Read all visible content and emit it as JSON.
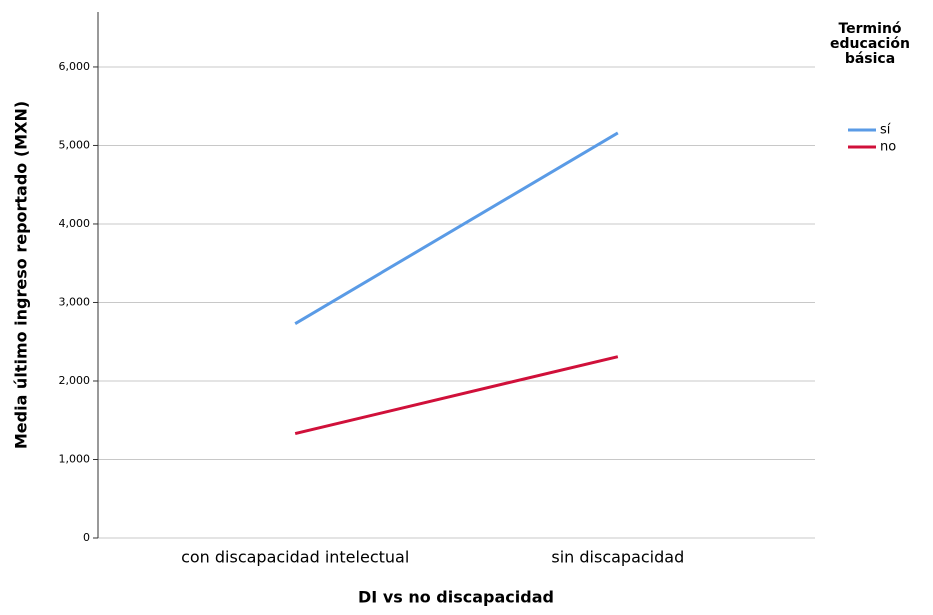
{
  "chart_data": {
    "type": "line",
    "x_label": "DI vs no discapacidad",
    "y_label": "Media último ingreso reportado (MXN)",
    "legend_title": "Terminó educación básica",
    "categories": [
      "con discapacidad intelectual",
      "sin discapacidad"
    ],
    "series": [
      {
        "name": "sí",
        "color": "#5a9be6",
        "values": [
          2730,
          5160
        ]
      },
      {
        "name": "no",
        "color": "#d0103a",
        "values": [
          1330,
          2310
        ]
      }
    ],
    "ylim": [
      0,
      6700
    ],
    "yticks": [
      0,
      {
        "value": 1000,
        "label": "1,000"
      },
      {
        "value": 2000,
        "label": "2,000"
      },
      {
        "value": 3000,
        "label": "3,000"
      },
      {
        "value": 4000,
        "label": "4,000"
      },
      {
        "value": 5000,
        "label": "5,000"
      },
      {
        "value": 6000,
        "label": "6,000"
      }
    ],
    "grid": true,
    "legend_position": "right"
  }
}
